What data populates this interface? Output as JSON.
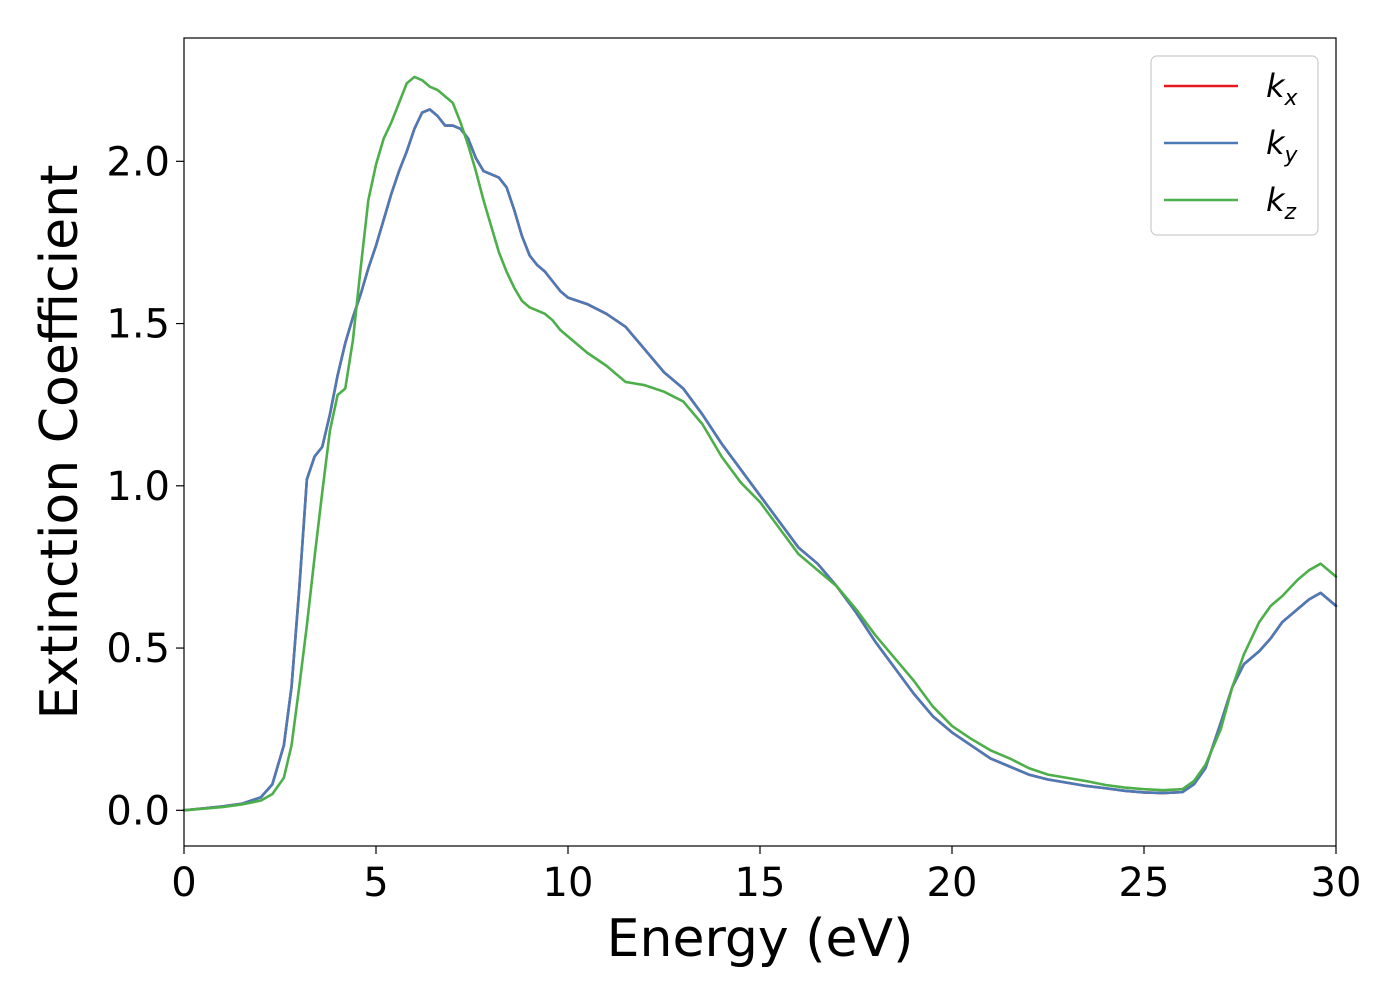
{
  "chart_data": {
    "type": "line",
    "title": "",
    "xlabel": "Energy (eV)",
    "ylabel": "Extinction Coefficient",
    "xlim": [
      0,
      30
    ],
    "ylim": [
      -0.11,
      2.38
    ],
    "xticks": [
      0,
      5,
      10,
      15,
      20,
      25,
      30
    ],
    "xtick_labels": [
      "0",
      "5",
      "10",
      "15",
      "20",
      "25",
      "30"
    ],
    "yticks": [
      0.0,
      0.5,
      1.0,
      1.5,
      2.0
    ],
    "ytick_labels": [
      "0.0",
      "0.5",
      "1.0",
      "1.5",
      "2.0"
    ],
    "grid": false,
    "legend_position": "top-right",
    "x": [
      0,
      0.5,
      1,
      1.5,
      2,
      2.3,
      2.6,
      2.8,
      3,
      3.2,
      3.4,
      3.6,
      3.8,
      4,
      4.2,
      4.4,
      4.6,
      4.8,
      5,
      5.2,
      5.4,
      5.6,
      5.8,
      6,
      6.2,
      6.4,
      6.6,
      6.8,
      7,
      7.2,
      7.4,
      7.6,
      7.8,
      8,
      8.2,
      8.4,
      8.6,
      8.8,
      9,
      9.2,
      9.4,
      9.6,
      9.8,
      10,
      10.5,
      11,
      11.5,
      12,
      12.5,
      13,
      13.5,
      14,
      14.5,
      15,
      15.5,
      16,
      16.5,
      17,
      17.5,
      18,
      18.5,
      19,
      19.5,
      20,
      20.5,
      21,
      21.5,
      22,
      22.5,
      23,
      23.5,
      24,
      24.5,
      25,
      25.5,
      26,
      26.3,
      26.6,
      27,
      27.3,
      27.6,
      28,
      28.3,
      28.6,
      29,
      29.3,
      29.6,
      30
    ],
    "series": [
      {
        "name": "k",
        "sub": "x",
        "color": "#e41a1c",
        "values": [
          0.0,
          0.006,
          0.012,
          0.02,
          0.04,
          0.08,
          0.2,
          0.38,
          0.68,
          1.02,
          1.09,
          1.12,
          1.22,
          1.34,
          1.44,
          1.52,
          1.59,
          1.67,
          1.74,
          1.82,
          1.9,
          1.97,
          2.03,
          2.1,
          2.15,
          2.16,
          2.14,
          2.11,
          2.11,
          2.1,
          2.07,
          2.01,
          1.97,
          1.96,
          1.95,
          1.92,
          1.85,
          1.77,
          1.71,
          1.68,
          1.66,
          1.63,
          1.6,
          1.58,
          1.56,
          1.53,
          1.49,
          1.42,
          1.35,
          1.3,
          1.22,
          1.13,
          1.05,
          0.97,
          0.89,
          0.81,
          0.76,
          0.69,
          0.61,
          0.52,
          0.44,
          0.36,
          0.29,
          0.24,
          0.2,
          0.16,
          0.135,
          0.11,
          0.095,
          0.085,
          0.075,
          0.068,
          0.06,
          0.055,
          0.053,
          0.056,
          0.08,
          0.13,
          0.27,
          0.38,
          0.45,
          0.49,
          0.53,
          0.58,
          0.62,
          0.65,
          0.67,
          0.63
        ]
      },
      {
        "name": "k",
        "sub": "y",
        "color": "#4a7bb7",
        "values": [
          0.0,
          0.006,
          0.012,
          0.02,
          0.04,
          0.08,
          0.2,
          0.38,
          0.68,
          1.02,
          1.09,
          1.12,
          1.22,
          1.34,
          1.44,
          1.52,
          1.59,
          1.67,
          1.74,
          1.82,
          1.9,
          1.97,
          2.03,
          2.1,
          2.15,
          2.16,
          2.14,
          2.11,
          2.11,
          2.1,
          2.07,
          2.01,
          1.97,
          1.96,
          1.95,
          1.92,
          1.85,
          1.77,
          1.71,
          1.68,
          1.66,
          1.63,
          1.6,
          1.58,
          1.56,
          1.53,
          1.49,
          1.42,
          1.35,
          1.3,
          1.22,
          1.13,
          1.05,
          0.97,
          0.89,
          0.81,
          0.76,
          0.69,
          0.61,
          0.52,
          0.44,
          0.36,
          0.29,
          0.24,
          0.2,
          0.16,
          0.135,
          0.11,
          0.095,
          0.085,
          0.075,
          0.068,
          0.06,
          0.055,
          0.053,
          0.056,
          0.08,
          0.13,
          0.27,
          0.38,
          0.45,
          0.49,
          0.53,
          0.58,
          0.62,
          0.65,
          0.67,
          0.63
        ]
      },
      {
        "name": "k",
        "sub": "z",
        "color": "#4daf4a",
        "values": [
          0.0,
          0.005,
          0.01,
          0.018,
          0.03,
          0.05,
          0.1,
          0.2,
          0.38,
          0.57,
          0.78,
          0.98,
          1.17,
          1.28,
          1.3,
          1.45,
          1.67,
          1.88,
          1.99,
          2.07,
          2.12,
          2.18,
          2.24,
          2.26,
          2.25,
          2.23,
          2.22,
          2.2,
          2.18,
          2.12,
          2.05,
          1.97,
          1.88,
          1.8,
          1.72,
          1.66,
          1.61,
          1.57,
          1.55,
          1.54,
          1.53,
          1.51,
          1.48,
          1.46,
          1.41,
          1.37,
          1.32,
          1.31,
          1.29,
          1.26,
          1.19,
          1.09,
          1.01,
          0.95,
          0.87,
          0.79,
          0.74,
          0.69,
          0.62,
          0.54,
          0.47,
          0.4,
          0.32,
          0.26,
          0.22,
          0.185,
          0.16,
          0.13,
          0.11,
          0.1,
          0.09,
          0.078,
          0.07,
          0.065,
          0.062,
          0.065,
          0.09,
          0.14,
          0.25,
          0.38,
          0.48,
          0.58,
          0.63,
          0.66,
          0.71,
          0.74,
          0.76,
          0.72
        ]
      }
    ]
  }
}
